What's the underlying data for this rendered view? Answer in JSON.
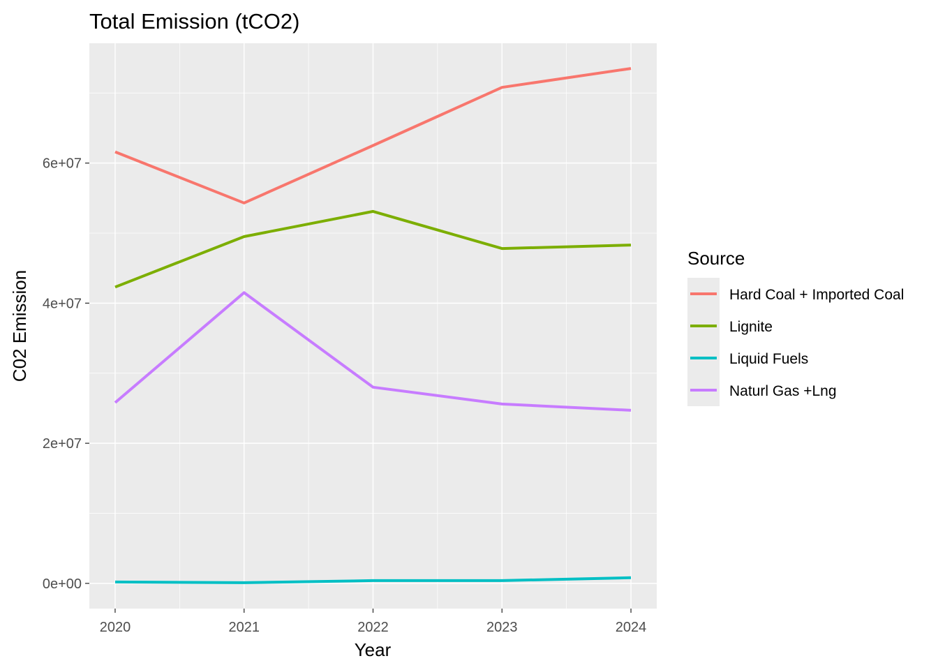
{
  "chart_data": {
    "type": "line",
    "title": "Total Emission (tCO2)",
    "xlabel": "Year",
    "ylabel": "C02 Emission",
    "x": [
      2020,
      2021,
      2022,
      2023,
      2024
    ],
    "x_tick_labels": [
      "2020",
      "2021",
      "2022",
      "2023",
      "2024"
    ],
    "xlim": [
      2019.8,
      2024.2
    ],
    "y_ticks": [
      0,
      20000000,
      40000000,
      60000000
    ],
    "y_tick_labels": [
      "0e+00",
      "2e+07",
      "4e+07",
      "6e+07"
    ],
    "ylim": [
      -3600000,
      77100000
    ],
    "grid": true,
    "background_color": "#ebebeb",
    "legend": {
      "title": "Source",
      "position": "right"
    },
    "series": [
      {
        "name": "Hard Coal + Imported Coal",
        "color": "#f8766d",
        "values": [
          61600000,
          54300000,
          62500000,
          70800000,
          73500000
        ]
      },
      {
        "name": "Lignite",
        "color": "#7cae00",
        "values": [
          42300000,
          49500000,
          53100000,
          47800000,
          48300000
        ]
      },
      {
        "name": "Liquid Fuels",
        "color": "#00bfc4",
        "values": [
          200000,
          100000,
          400000,
          400000,
          800000
        ]
      },
      {
        "name": "Naturl Gas +Lng",
        "color": "#c77cff",
        "values": [
          25800000,
          41500000,
          28000000,
          25600000,
          24700000
        ]
      }
    ]
  }
}
